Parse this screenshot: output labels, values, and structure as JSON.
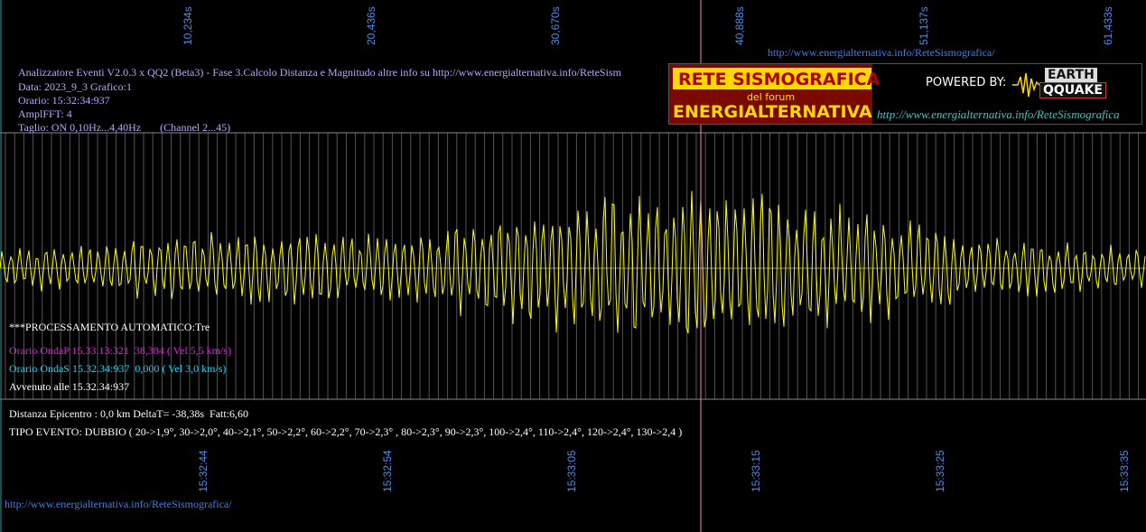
{
  "top_axis": {
    "labels": [
      "10,234s",
      "20,436s",
      "30,670s",
      "40,888s",
      "51,137s",
      "61,433s"
    ]
  },
  "bottom_axis": {
    "labels": [
      "15:32:44",
      "15:32:54",
      "15:33:05",
      "15:33:15",
      "15:33:25",
      "15:33:35"
    ]
  },
  "header": {
    "top_url": "http://www.energialternativa.info/ReteSismografica/",
    "line1": "Analizzatore Eventi V2.0.3 x QQ2 (Beta3) - Fase 3.Calcolo Distanza e Magnitudo altre info su http://www.energialternativa.info/ReteSism",
    "line2": "Data: 2023_9_3 Grafico:1",
    "line3": "Orario: 15:32:34:937",
    "line4": "AmplFFT: 4",
    "line5": "Taglio: ON 0,10Hz...4,40Hz       (Channel 2...45)"
  },
  "logo": {
    "title": "RETE SISMOGRAFICA",
    "forum": "del forum",
    "name": "ENERGIALTERNATIVA",
    "powered": "POWERED BY:",
    "earth": "EARTH",
    "quake": "QQUAKE",
    "url": "http://www.energialternativa.info/ReteSismografica"
  },
  "processing": {
    "title": "***PROCESSAMENTO AUTOMATICO:Tre",
    "onda_p": "Orario OndaP 15.33.13:321  38,384 ( Vel 5,5 km/s)",
    "onda_s": "Orario OndaS 15.32.34:937  0,000 ( Vel 3,0 km/s)",
    "avvenuto": "Avvenuto alle 15.32.34:937"
  },
  "result": {
    "distanza": "Distanza Epicentro : 0,0 km DeltaT= -38,38s  Fatt:6,60",
    "tipo": "TIPO EVENTO: DUBBIO ( 20->1,9°, 30->2,0°, 40->2,1°, 50->2,2°, 60->2,2°, 70->2,3° , 80->2,3°, 90->2,3°, 100->2,4°, 110->2,4°, 120->2,4°, 130->2,4 )"
  },
  "footer_url": "http://www.energialternativa.info/ReteSismografica/",
  "colors": {
    "background": "#000000",
    "trace": "#ffff00",
    "grid": "#8a8a8a",
    "marker": "#ff80c0",
    "tick_text": "#4f8de6"
  }
}
